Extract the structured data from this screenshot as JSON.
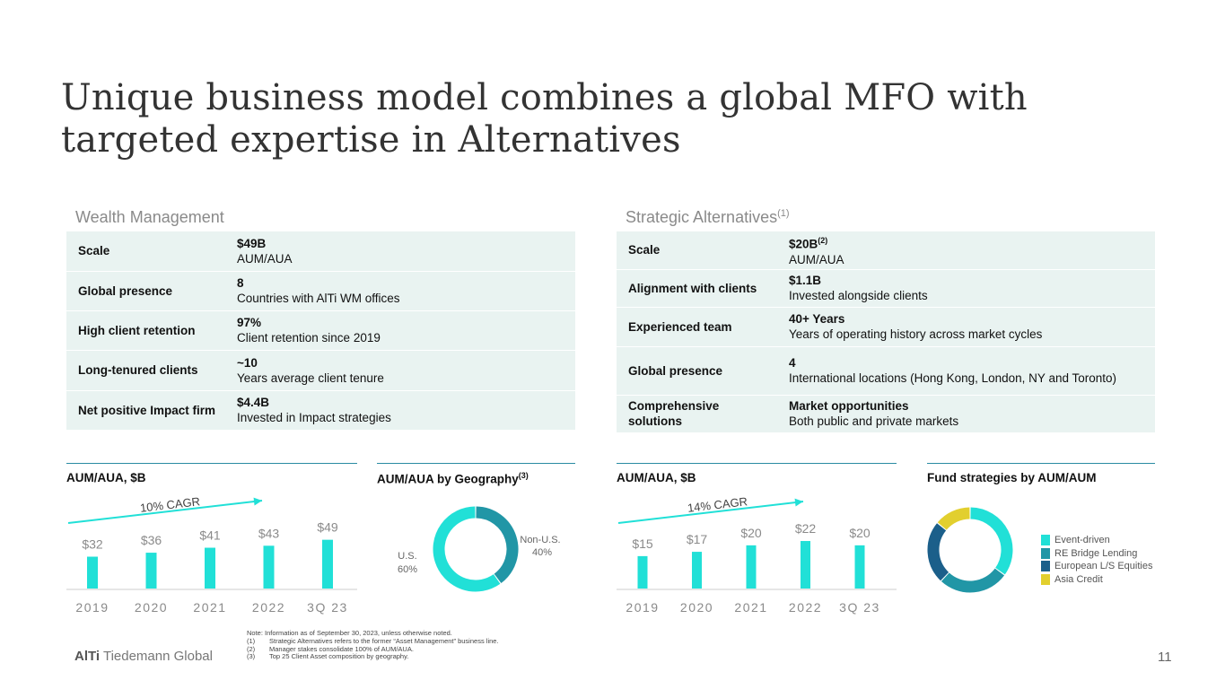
{
  "title": "Unique business model combines a global MFO with targeted expertise in Alternatives",
  "colors": {
    "teal_light": "#21e0d7",
    "teal_mid": "#2196a6",
    "navy": "#1b5f8a",
    "yellow": "#e2cf2e",
    "accent_line": "#2a8ba2",
    "table_bg": "#e9f3f1"
  },
  "wealth": {
    "title": "Wealth Management",
    "rows": [
      {
        "label": "Scale",
        "value": "$49B",
        "desc": "AUM/AUA"
      },
      {
        "label": "Global presence",
        "value": "8",
        "desc": "Countries with AlTi WM offices"
      },
      {
        "label": "High client retention",
        "value": "97%",
        "desc": "Client retention since 2019"
      },
      {
        "label": "Long-tenured clients",
        "value": "~10",
        "desc": "Years average client tenure"
      },
      {
        "label": "Net positive Impact firm",
        "value": "$4.4B",
        "desc": "Invested in Impact strategies"
      }
    ]
  },
  "alternatives": {
    "title": "Strategic Alternatives",
    "title_sup": "(1)",
    "rows": [
      {
        "label": "Scale",
        "value": "$20B",
        "value_sup": "(2)",
        "desc": "AUM/AUA"
      },
      {
        "label": "Alignment with clients",
        "value": "$1.1B",
        "desc": "Invested alongside clients"
      },
      {
        "label": "Experienced team",
        "value": "40+ Years",
        "desc": "Years of operating history across market cycles"
      },
      {
        "label": "Global presence",
        "value": "4",
        "desc": "International locations (Hong Kong, London, NY and Toronto)"
      },
      {
        "label": "Comprehensive solutions",
        "value": "Market opportunities",
        "desc": "Both public and private markets"
      }
    ]
  },
  "chart_data": [
    {
      "type": "bar",
      "title": "AUM/AUA, $B",
      "categories": [
        "2019",
        "2020",
        "2021",
        "2022",
        "3Q 23"
      ],
      "values": [
        32,
        36,
        41,
        43,
        49
      ],
      "labels": [
        "$32",
        "$36",
        "$41",
        "$43",
        "$49"
      ],
      "annotation": "10% CAGR",
      "ylim": [
        0,
        55
      ]
    },
    {
      "type": "pie",
      "title": "AUM/AUA by Geography",
      "title_sup": "(3)",
      "slices": [
        {
          "name": "Non-U.S.",
          "value": 40,
          "label": "40%"
        },
        {
          "name": "U.S.",
          "value": 60,
          "label": "60%"
        }
      ]
    },
    {
      "type": "bar",
      "title": "AUM/AUA, $B",
      "categories": [
        "2019",
        "2020",
        "2021",
        "2022",
        "3Q 23"
      ],
      "values": [
        15,
        17,
        20,
        22,
        20
      ],
      "labels": [
        "$15",
        "$17",
        "$20",
        "$22",
        "$20"
      ],
      "annotation": "14% CAGR",
      "ylim": [
        0,
        27
      ]
    },
    {
      "type": "pie",
      "title": "Fund strategies by AUM/AUM",
      "slices": [
        {
          "name": "Event-driven",
          "value": 35
        },
        {
          "name": "RE Bridge Lending",
          "value": 27
        },
        {
          "name": "European L/S Equities",
          "value": 24
        },
        {
          "name": "Asia Credit",
          "value": 14
        }
      ]
    }
  ],
  "notes": {
    "intro": "Note: Information as of September 30, 2023, unless otherwise noted.",
    "items": [
      {
        "num": "(1)",
        "text": "Strategic Alternatives refers to the former “Asset Management” business line."
      },
      {
        "num": "(2)",
        "text": "Manager stakes consolidate 100% of AUM/AUA."
      },
      {
        "num": "(3)",
        "text": "Top 25 Client Asset composition by geography."
      }
    ]
  },
  "footer": {
    "logo_bold": "AlTi",
    "logo_rest": "Tiedemann Global",
    "page": "11"
  }
}
